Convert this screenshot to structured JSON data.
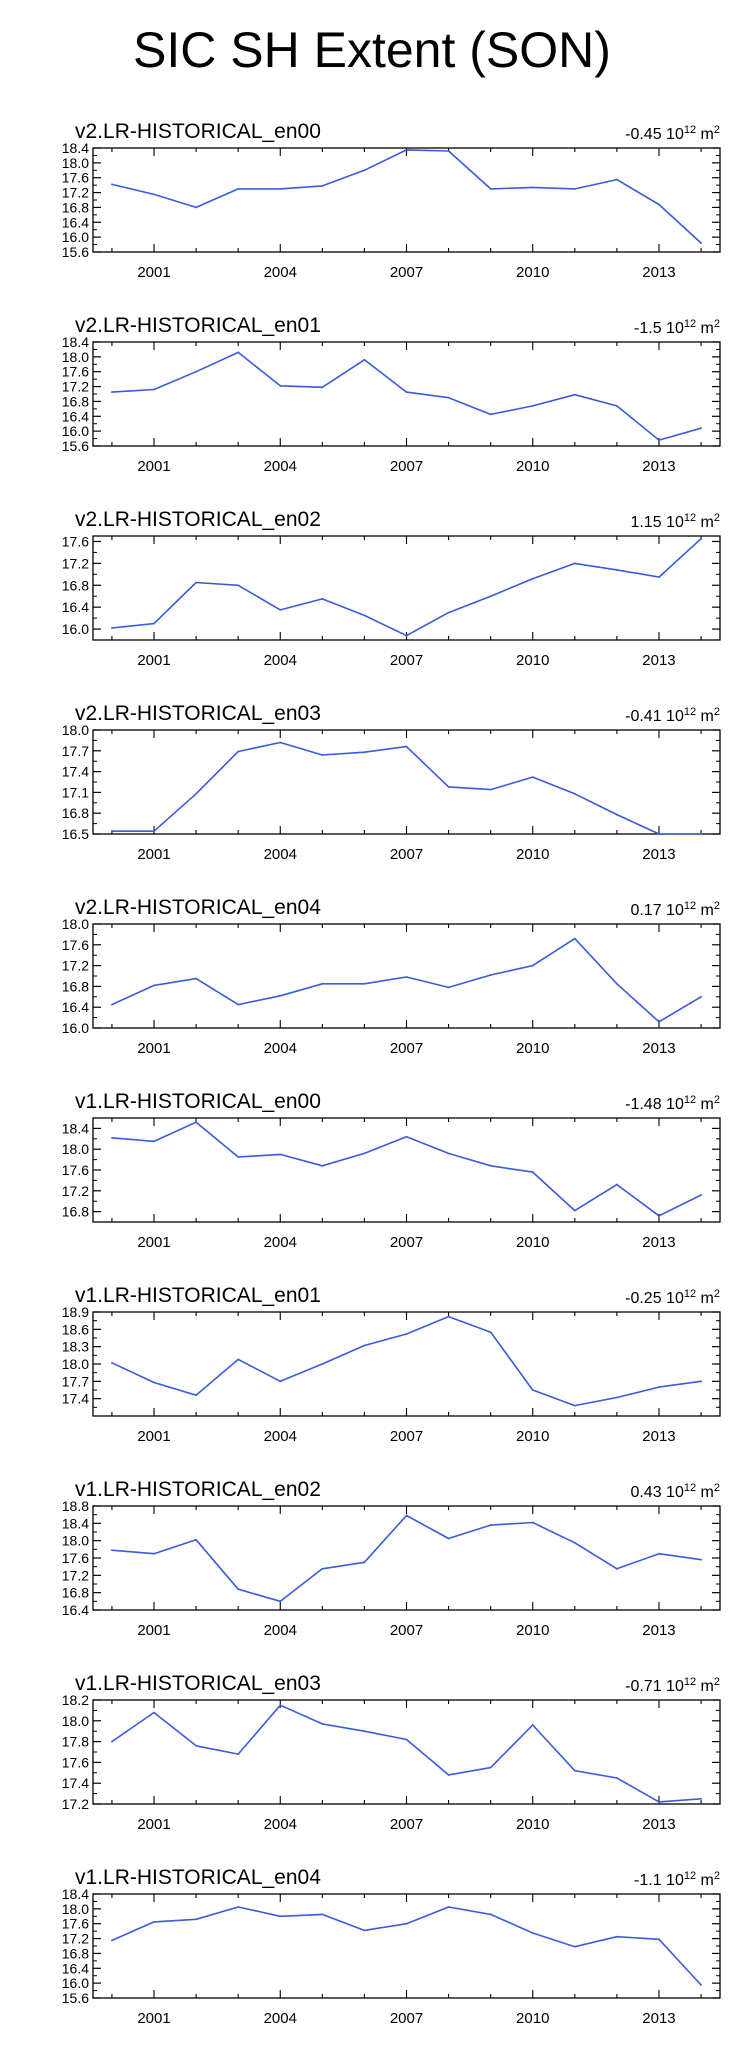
{
  "title": "SIC SH Extent (SON)",
  "colors": {
    "line": "#3a5bdc",
    "axis": "#000000"
  },
  "units": {
    "scale": "10",
    "exponent": "12",
    "unit": "m",
    "unit_exponent": "2"
  },
  "chart_data": [
    {
      "type": "line",
      "title": "v2.LR-HISTORICAL_en00",
      "trend": "-0.45",
      "x": [
        2000,
        2001,
        2002,
        2003,
        2004,
        2005,
        2006,
        2007,
        2008,
        2009,
        2010,
        2011,
        2012,
        2013,
        2014
      ],
      "values": [
        17.42,
        17.15,
        16.8,
        17.3,
        17.3,
        17.38,
        17.8,
        18.35,
        18.32,
        17.3,
        17.34,
        17.3,
        17.55,
        16.88,
        15.84
      ],
      "ylim": [
        15.6,
        18.4
      ],
      "yticks": [
        15.6,
        16.0,
        16.4,
        16.8,
        17.2,
        17.6,
        18.0,
        18.4
      ],
      "ytick_labels": [
        "15.6",
        "16.0",
        "16.4",
        "16.8",
        "17.2",
        "17.6",
        "18.0",
        "18.4"
      ],
      "xticks": [
        2001,
        2004,
        2007,
        2010,
        2013
      ],
      "xtick_labels": [
        "2001",
        "2004",
        "2007",
        "2010",
        "2013"
      ]
    },
    {
      "type": "line",
      "title": "v2.LR-HISTORICAL_en01",
      "trend": "-1.5",
      "x": [
        2000,
        2001,
        2002,
        2003,
        2004,
        2005,
        2006,
        2007,
        2008,
        2009,
        2010,
        2011,
        2012,
        2013,
        2014
      ],
      "values": [
        17.05,
        17.12,
        17.6,
        18.12,
        17.22,
        17.18,
        17.92,
        17.05,
        16.9,
        16.45,
        16.68,
        16.98,
        16.68,
        15.76,
        16.08
      ],
      "ylim": [
        15.6,
        18.4
      ],
      "yticks": [
        15.6,
        16.0,
        16.4,
        16.8,
        17.2,
        17.6,
        18.0,
        18.4
      ],
      "ytick_labels": [
        "15.6",
        "16.0",
        "16.4",
        "16.8",
        "17.2",
        "17.6",
        "18.0",
        "18.4"
      ],
      "xticks": [
        2001,
        2004,
        2007,
        2010,
        2013
      ],
      "xtick_labels": [
        "2001",
        "2004",
        "2007",
        "2010",
        "2013"
      ]
    },
    {
      "type": "line",
      "title": "v2.LR-HISTORICAL_en02",
      "trend": "1.15",
      "x": [
        2000,
        2001,
        2002,
        2003,
        2004,
        2005,
        2006,
        2007,
        2008,
        2009,
        2010,
        2011,
        2012,
        2013,
        2014
      ],
      "values": [
        16.02,
        16.1,
        16.85,
        16.8,
        16.35,
        16.55,
        16.25,
        15.88,
        16.3,
        16.6,
        16.92,
        17.2,
        17.08,
        16.95,
        17.65
      ],
      "ylim": [
        15.8,
        17.7
      ],
      "yticks": [
        16.0,
        16.4,
        16.8,
        17.2,
        17.6
      ],
      "ytick_labels": [
        "16.0",
        "16.4",
        "16.8",
        "17.2",
        "17.6"
      ],
      "xticks": [
        2001,
        2004,
        2007,
        2010,
        2013
      ],
      "xtick_labels": [
        "2001",
        "2004",
        "2007",
        "2010",
        "2013"
      ]
    },
    {
      "type": "line",
      "title": "v2.LR-HISTORICAL_en03",
      "trend": "-0.41",
      "x": [
        2000,
        2001,
        2002,
        2003,
        2004,
        2005,
        2006,
        2007,
        2008,
        2009,
        2010,
        2011,
        2012,
        2013,
        2014
      ],
      "values": [
        16.54,
        16.54,
        17.08,
        17.69,
        17.82,
        17.64,
        17.68,
        17.76,
        17.18,
        17.14,
        17.32,
        17.08,
        16.78,
        16.5,
        16.5
      ],
      "ylim": [
        16.5,
        18.0
      ],
      "yticks": [
        16.5,
        16.8,
        17.1,
        17.4,
        17.7,
        18.0
      ],
      "ytick_labels": [
        "16.5",
        "16.8",
        "17.1",
        "17.4",
        "17.7",
        "18.0"
      ],
      "xticks": [
        2001,
        2004,
        2007,
        2010,
        2013
      ],
      "xtick_labels": [
        "2001",
        "2004",
        "2007",
        "2010",
        "2013"
      ]
    },
    {
      "type": "line",
      "title": "v2.LR-HISTORICAL_en04",
      "trend": "0.17",
      "x": [
        2000,
        2001,
        2002,
        2003,
        2004,
        2005,
        2006,
        2007,
        2008,
        2009,
        2010,
        2011,
        2012,
        2013,
        2014
      ],
      "values": [
        16.45,
        16.82,
        16.95,
        16.45,
        16.62,
        16.85,
        16.85,
        16.98,
        16.78,
        17.02,
        17.2,
        17.72,
        16.85,
        16.12,
        16.6
      ],
      "ylim": [
        16.0,
        18.0
      ],
      "yticks": [
        16.0,
        16.4,
        16.8,
        17.2,
        17.6,
        18.0
      ],
      "ytick_labels": [
        "16.0",
        "16.4",
        "16.8",
        "17.2",
        "17.6",
        "18.0"
      ],
      "xticks": [
        2001,
        2004,
        2007,
        2010,
        2013
      ],
      "xtick_labels": [
        "2001",
        "2004",
        "2007",
        "2010",
        "2013"
      ]
    },
    {
      "type": "line",
      "title": "v1.LR-HISTORICAL_en00",
      "trend": "-1.48",
      "x": [
        2000,
        2001,
        2002,
        2003,
        2004,
        2005,
        2006,
        2007,
        2008,
        2009,
        2010,
        2011,
        2012,
        2013,
        2014
      ],
      "values": [
        18.22,
        18.15,
        18.52,
        17.85,
        17.9,
        17.68,
        17.92,
        18.24,
        17.92,
        17.68,
        17.56,
        16.82,
        17.32,
        16.72,
        17.12
      ],
      "ylim": [
        16.6,
        18.6
      ],
      "yticks": [
        16.8,
        17.2,
        17.6,
        18.0,
        18.4
      ],
      "ytick_labels": [
        "16.8",
        "17.2",
        "17.6",
        "18.0",
        "18.4"
      ],
      "xticks": [
        2001,
        2004,
        2007,
        2010,
        2013
      ],
      "xtick_labels": [
        "2001",
        "2004",
        "2007",
        "2010",
        "2013"
      ]
    },
    {
      "type": "line",
      "title": "v1.LR-HISTORICAL_en01",
      "trend": "-0.25",
      "x": [
        2000,
        2001,
        2002,
        2003,
        2004,
        2005,
        2006,
        2007,
        2008,
        2009,
        2010,
        2011,
        2012,
        2013,
        2014
      ],
      "values": [
        18.02,
        17.68,
        17.46,
        18.08,
        17.7,
        18.0,
        18.32,
        18.52,
        18.82,
        18.55,
        17.55,
        17.28,
        17.42,
        17.6,
        17.7
      ],
      "ylim": [
        17.1,
        18.9
      ],
      "yticks": [
        17.4,
        17.7,
        18.0,
        18.3,
        18.6,
        18.9
      ],
      "ytick_labels": [
        "17.4",
        "17.7",
        "18.0",
        "18.3",
        "18.6",
        "18.9"
      ],
      "xticks": [
        2001,
        2004,
        2007,
        2010,
        2013
      ],
      "xtick_labels": [
        "2001",
        "2004",
        "2007",
        "2010",
        "2013"
      ]
    },
    {
      "type": "line",
      "title": "v1.LR-HISTORICAL_en02",
      "trend": "0.43",
      "x": [
        2000,
        2001,
        2002,
        2003,
        2004,
        2005,
        2006,
        2007,
        2008,
        2009,
        2010,
        2011,
        2012,
        2013,
        2014
      ],
      "values": [
        17.78,
        17.7,
        18.02,
        16.88,
        16.6,
        17.35,
        17.5,
        18.58,
        18.05,
        18.36,
        18.42,
        17.95,
        17.35,
        17.7,
        17.56
      ],
      "ylim": [
        16.4,
        18.8
      ],
      "yticks": [
        16.4,
        16.8,
        17.2,
        17.6,
        18.0,
        18.4,
        18.8
      ],
      "ytick_labels": [
        "16.4",
        "16.8",
        "17.2",
        "17.6",
        "18.0",
        "18.4",
        "18.8"
      ],
      "xticks": [
        2001,
        2004,
        2007,
        2010,
        2013
      ],
      "xtick_labels": [
        "2001",
        "2004",
        "2007",
        "2010",
        "2013"
      ]
    },
    {
      "type": "line",
      "title": "v1.LR-HISTORICAL_en03",
      "trend": "-0.71",
      "x": [
        2000,
        2001,
        2002,
        2003,
        2004,
        2005,
        2006,
        2007,
        2008,
        2009,
        2010,
        2011,
        2012,
        2013,
        2014
      ],
      "values": [
        17.8,
        18.08,
        17.76,
        17.68,
        18.15,
        17.97,
        17.9,
        17.82,
        17.48,
        17.55,
        17.96,
        17.52,
        17.45,
        17.22,
        17.25
      ],
      "ylim": [
        17.2,
        18.2
      ],
      "yticks": [
        17.2,
        17.4,
        17.6,
        17.8,
        18.0,
        18.2
      ],
      "ytick_labels": [
        "17.2",
        "17.4",
        "17.6",
        "17.8",
        "18.0",
        "18.2"
      ],
      "xticks": [
        2001,
        2004,
        2007,
        2010,
        2013
      ],
      "xtick_labels": [
        "2001",
        "2004",
        "2007",
        "2010",
        "2013"
      ]
    },
    {
      "type": "line",
      "title": "v1.LR-HISTORICAL_en04",
      "trend": "-1.1",
      "x": [
        2000,
        2001,
        2002,
        2003,
        2004,
        2005,
        2006,
        2007,
        2008,
        2009,
        2010,
        2011,
        2012,
        2013,
        2014
      ],
      "values": [
        17.15,
        17.65,
        17.72,
        18.05,
        17.8,
        17.85,
        17.42,
        17.6,
        18.05,
        17.85,
        17.35,
        16.98,
        17.25,
        17.18,
        15.95
      ],
      "ylim": [
        15.6,
        18.4
      ],
      "yticks": [
        15.6,
        16.0,
        16.4,
        16.8,
        17.2,
        17.6,
        18.0,
        18.4
      ],
      "ytick_labels": [
        "15.6",
        "16.0",
        "16.4",
        "16.8",
        "17.2",
        "17.6",
        "18.0",
        "18.4"
      ],
      "xticks": [
        2001,
        2004,
        2007,
        2010,
        2013
      ],
      "xtick_labels": [
        "2001",
        "2004",
        "2007",
        "2010",
        "2013"
      ]
    }
  ]
}
